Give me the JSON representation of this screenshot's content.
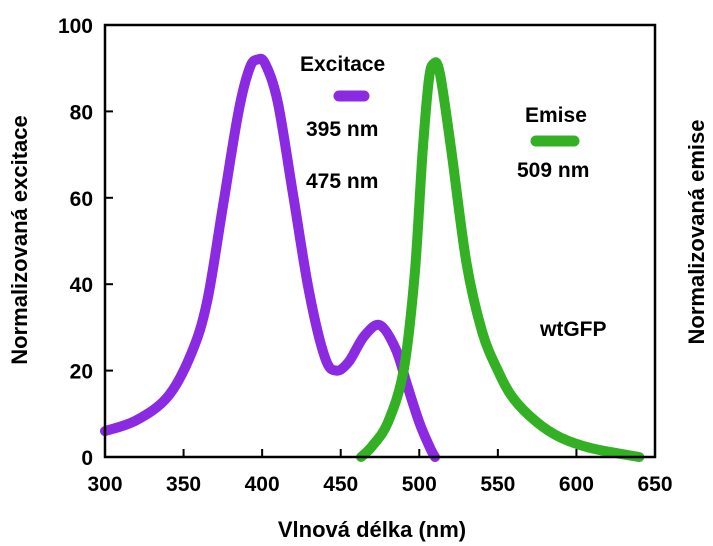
{
  "chart_data": {
    "type": "line",
    "xlabel": "Vlnová délka (nm)",
    "ylabel_left": "Normalizovaná excitace",
    "ylabel_right": "Normalizovaná emise",
    "xlim": [
      300,
      650
    ],
    "ylim": [
      0,
      100
    ],
    "x_ticks": [
      300,
      350,
      400,
      450,
      500,
      550,
      600,
      650
    ],
    "y_ticks": [
      0,
      20,
      40,
      60,
      80,
      100
    ],
    "grid": false,
    "series": [
      {
        "name": "Excitace",
        "color": "#8a2be2",
        "points": [
          [
            300,
            6
          ],
          [
            320,
            8.5
          ],
          [
            340,
            14
          ],
          [
            355,
            24
          ],
          [
            365,
            36
          ],
          [
            375,
            58
          ],
          [
            385,
            80
          ],
          [
            392,
            90
          ],
          [
            397,
            92
          ],
          [
            402,
            91
          ],
          [
            410,
            82
          ],
          [
            420,
            60
          ],
          [
            430,
            38
          ],
          [
            440,
            23
          ],
          [
            447,
            20
          ],
          [
            455,
            22
          ],
          [
            465,
            28
          ],
          [
            475,
            30.5
          ],
          [
            485,
            25
          ],
          [
            492,
            17
          ],
          [
            500,
            8
          ],
          [
            507,
            2
          ],
          [
            510,
            0
          ]
        ]
      },
      {
        "name": "Emise",
        "color": "#33b024",
        "points": [
          [
            463,
            0
          ],
          [
            470,
            2.5
          ],
          [
            480,
            8
          ],
          [
            490,
            20
          ],
          [
            497,
            42
          ],
          [
            502,
            70
          ],
          [
            506,
            87
          ],
          [
            509,
            91
          ],
          [
            513,
            89
          ],
          [
            520,
            72
          ],
          [
            530,
            45
          ],
          [
            540,
            29
          ],
          [
            550,
            20
          ],
          [
            560,
            13.5
          ],
          [
            575,
            8
          ],
          [
            590,
            4.5
          ],
          [
            610,
            2
          ],
          [
            640,
            0
          ]
        ]
      }
    ],
    "annotations": {
      "excitation_title": "Excitace",
      "excitation_peak1": "395 nm",
      "excitation_peak2": "475 nm",
      "emission_title": "Emise",
      "emission_peak": "509 nm",
      "protein": "wtGFP"
    }
  }
}
